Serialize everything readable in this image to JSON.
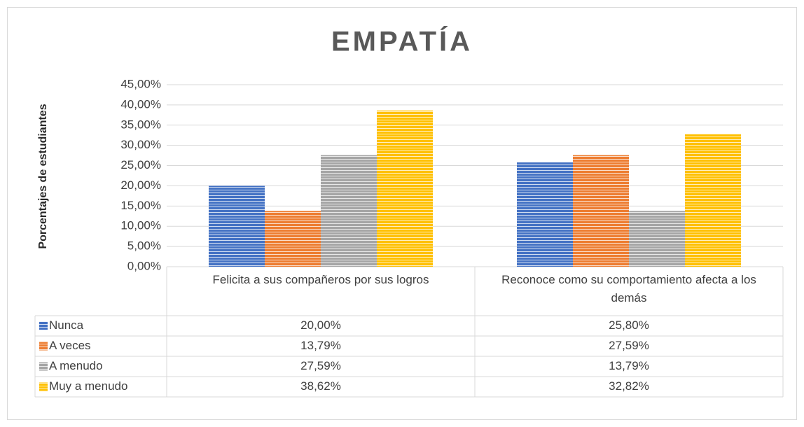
{
  "chart_data": {
    "type": "bar",
    "title": "EMPATÍA",
    "y_label": "Porcentajes de estudiantes",
    "categories": [
      "Felicita a sus compañeros por sus logros",
      "Reconoce como su comportamiento afecta a los demás"
    ],
    "series": [
      {
        "name": "Nunca",
        "color": "#4472c4",
        "values": [
          20.0,
          25.8
        ],
        "value_labels": [
          "20,00%",
          "25,80%"
        ]
      },
      {
        "name": "A veces",
        "color": "#ed7d31",
        "values": [
          13.79,
          27.59
        ],
        "value_labels": [
          "13,79%",
          "27,59%"
        ]
      },
      {
        "name": "A menudo",
        "color": "#a5a5a5",
        "values": [
          27.59,
          13.79
        ],
        "value_labels": [
          "27,59%",
          "13,79%"
        ]
      },
      {
        "name": "Muy a menudo",
        "color": "#ffc000",
        "values": [
          38.62,
          32.82
        ],
        "value_labels": [
          "38,62%",
          "32,82%"
        ]
      }
    ],
    "ylim": [
      0,
      45
    ],
    "yticks": [
      {
        "value": 0,
        "label": "0,00%"
      },
      {
        "value": 5,
        "label": "5,00%"
      },
      {
        "value": 10,
        "label": "10,00%"
      },
      {
        "value": 15,
        "label": "15,00%"
      },
      {
        "value": 20,
        "label": "20,00%"
      },
      {
        "value": 25,
        "label": "25,00%"
      },
      {
        "value": 30,
        "label": "30,00%"
      },
      {
        "value": 35,
        "label": "35,00%"
      },
      {
        "value": 40,
        "label": "40,00%"
      },
      {
        "value": 45,
        "label": "45,00%"
      }
    ],
    "grid": true,
    "data_table": true
  }
}
